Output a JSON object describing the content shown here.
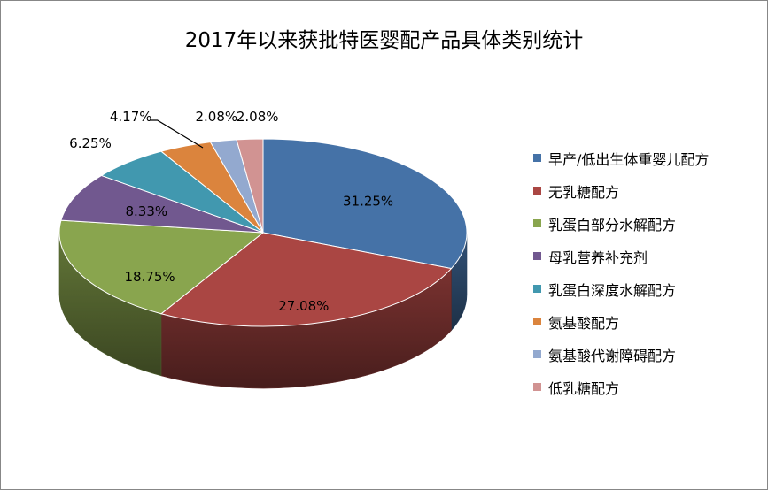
{
  "chart_data": {
    "type": "pie",
    "title": "2017年以来获批特医婴配产品具体类别统计",
    "categories": [
      "早产/低出生体重婴儿配方",
      "无乳糖配方",
      "乳蛋白部分水解配方",
      "母乳营养补充剂",
      "乳蛋白深度水解配方",
      "氨基酸配方",
      "氨基酸代谢障碍配方",
      "低乳糖配方"
    ],
    "values": [
      31.25,
      27.08,
      18.75,
      8.33,
      6.25,
      4.17,
      2.08,
      2.08
    ],
    "labels": [
      "31.25%",
      "27.08%",
      "18.75%",
      "8.33%",
      "6.25%",
      "4.17%",
      "2.08%",
      "2.08%"
    ],
    "colors": [
      "#4572A7",
      "#AA4643",
      "#89A54E",
      "#71588F",
      "#4198AF",
      "#DB843D",
      "#93A9CF",
      "#D19392"
    ],
    "legend_position": "right",
    "style": "3d"
  }
}
